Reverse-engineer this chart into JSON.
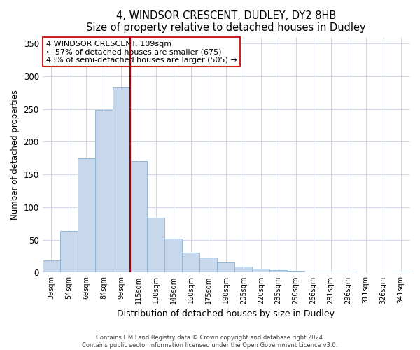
{
  "title": "4, WINDSOR CRESCENT, DUDLEY, DY2 8HB",
  "subtitle": "Size of property relative to detached houses in Dudley",
  "xlabel": "Distribution of detached houses by size in Dudley",
  "ylabel": "Number of detached properties",
  "bar_labels": [
    "39sqm",
    "54sqm",
    "69sqm",
    "84sqm",
    "99sqm",
    "115sqm",
    "130sqm",
    "145sqm",
    "160sqm",
    "175sqm",
    "190sqm",
    "205sqm",
    "220sqm",
    "235sqm",
    "250sqm",
    "266sqm",
    "281sqm",
    "296sqm",
    "311sqm",
    "326sqm",
    "341sqm"
  ],
  "bar_values": [
    19,
    64,
    175,
    249,
    283,
    170,
    84,
    52,
    30,
    23,
    15,
    9,
    6,
    4,
    3,
    2,
    1,
    1,
    0,
    0,
    2
  ],
  "bar_color": "#c8d8ec",
  "bar_edge_color": "#8ab0d0",
  "vline_x_index": 4.5,
  "vline_color": "#aa0000",
  "annotation_title": "4 WINDSOR CRESCENT: 109sqm",
  "annotation_line1": "← 57% of detached houses are smaller (675)",
  "annotation_line2": "43% of semi-detached houses are larger (505) →",
  "annotation_box_facecolor": "#ffffff",
  "annotation_box_edgecolor": "#cc2222",
  "ylim_max": 360,
  "yticks": [
    0,
    50,
    100,
    150,
    200,
    250,
    300,
    350
  ],
  "footer1": "Contains HM Land Registry data © Crown copyright and database right 2024.",
  "footer2": "Contains public sector information licensed under the Open Government Licence v3.0."
}
